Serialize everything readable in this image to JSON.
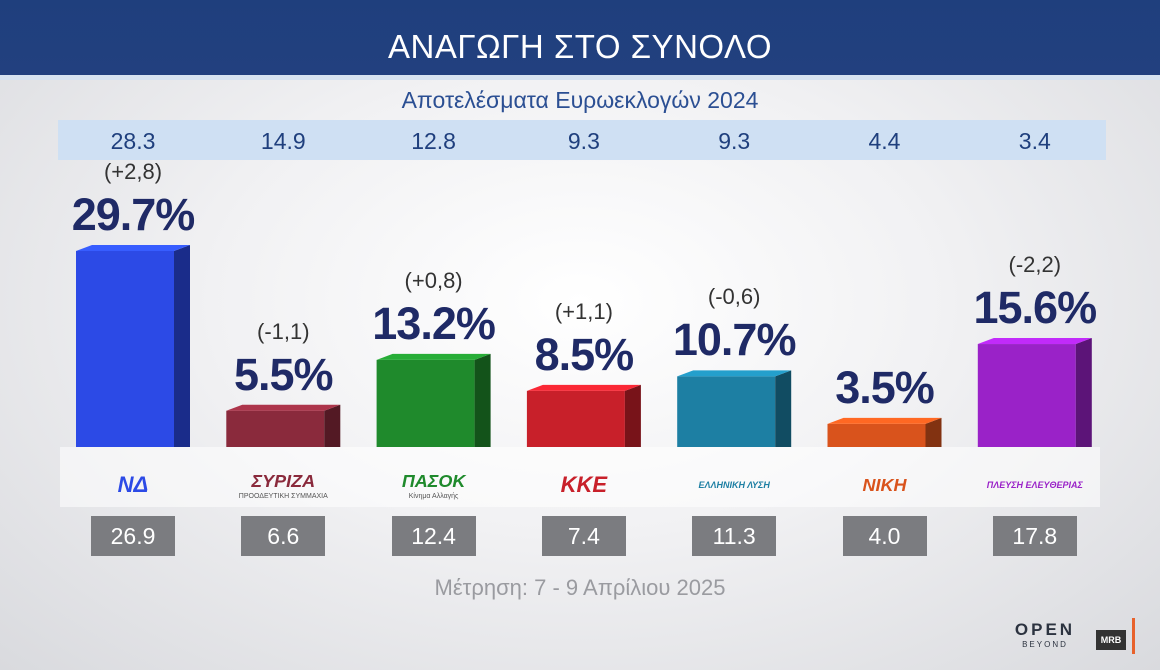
{
  "title": "ΑΝΑΓΩΓΗ ΣΤΟ ΣΥΝΟΛΟ",
  "subtitle": "Αποτελέσματα Ευρωεκλογών 2024",
  "footer_note": "Μέτρηση: 7 - 9 Απρίλιου 2025",
  "brand": {
    "open": "OPEN",
    "beyond": "BEYOND",
    "mrb": "MRB"
  },
  "colors": {
    "header": "#1f3f7d",
    "prev_band": "#cfe0f3",
    "percent_text": "#1f2a66"
  },
  "chart_data": {
    "type": "bar",
    "ylim": [
      0,
      30
    ],
    "parties": [
      {
        "logo": "ΝΔ",
        "percent": 29.7,
        "percent_label": "29.7%",
        "change": "(+2,8)",
        "euro_2024": "28.3",
        "other_value": "26.9",
        "color": "#2c4ae6",
        "icon": "nd-logo"
      },
      {
        "logo": "ΣΥΡΙΖΑ",
        "logo_sub": "ΠΡΟΟΔΕΥΤΙΚΗ ΣΥΜΜΑΧΙΑ",
        "percent": 5.5,
        "percent_label": "5.5%",
        "change": "(-1,1)",
        "euro_2024": "14.9",
        "other_value": "6.6",
        "color": "#8a2a3c",
        "icon": "syriza-logo"
      },
      {
        "logo": "ΠΑΣΟΚ",
        "logo_sub": "Κίνημα Αλλαγής",
        "percent": 13.2,
        "percent_label": "13.2%",
        "change": "(+0,8)",
        "euro_2024": "12.8",
        "other_value": "12.4",
        "color": "#1f8a2c",
        "icon": "pasok-logo"
      },
      {
        "logo": "ΚΚΕ",
        "percent": 8.5,
        "percent_label": "8.5%",
        "change": "(+1,1)",
        "euro_2024": "9.3",
        "other_value": "7.4",
        "color": "#c8202a",
        "icon": "kke-logo"
      },
      {
        "logo": "ΕΛΛΗΝΙΚΗ ΛΥΣΗ",
        "percent": 10.7,
        "percent_label": "10.7%",
        "change": "(-0,6)",
        "euro_2024": "9.3",
        "other_value": "11.3",
        "color": "#1d7fa3",
        "icon": "elliniki-lysi-logo"
      },
      {
        "logo": "ΝΙΚΗ",
        "percent": 3.5,
        "percent_label": "3.5%",
        "change": "",
        "euro_2024": "4.4",
        "other_value": "4.0",
        "color": "#d9531c",
        "icon": "niki-logo"
      },
      {
        "logo": "ΠΛΕΥΣΗ ΕΛΕΥΘΕΡΙΑΣ",
        "percent": 15.6,
        "percent_label": "15.6%",
        "change": "(-2,2)",
        "euro_2024": "3.4",
        "other_value": "17.8",
        "color": "#9a22c8",
        "icon": "plefsi-logo"
      }
    ]
  }
}
